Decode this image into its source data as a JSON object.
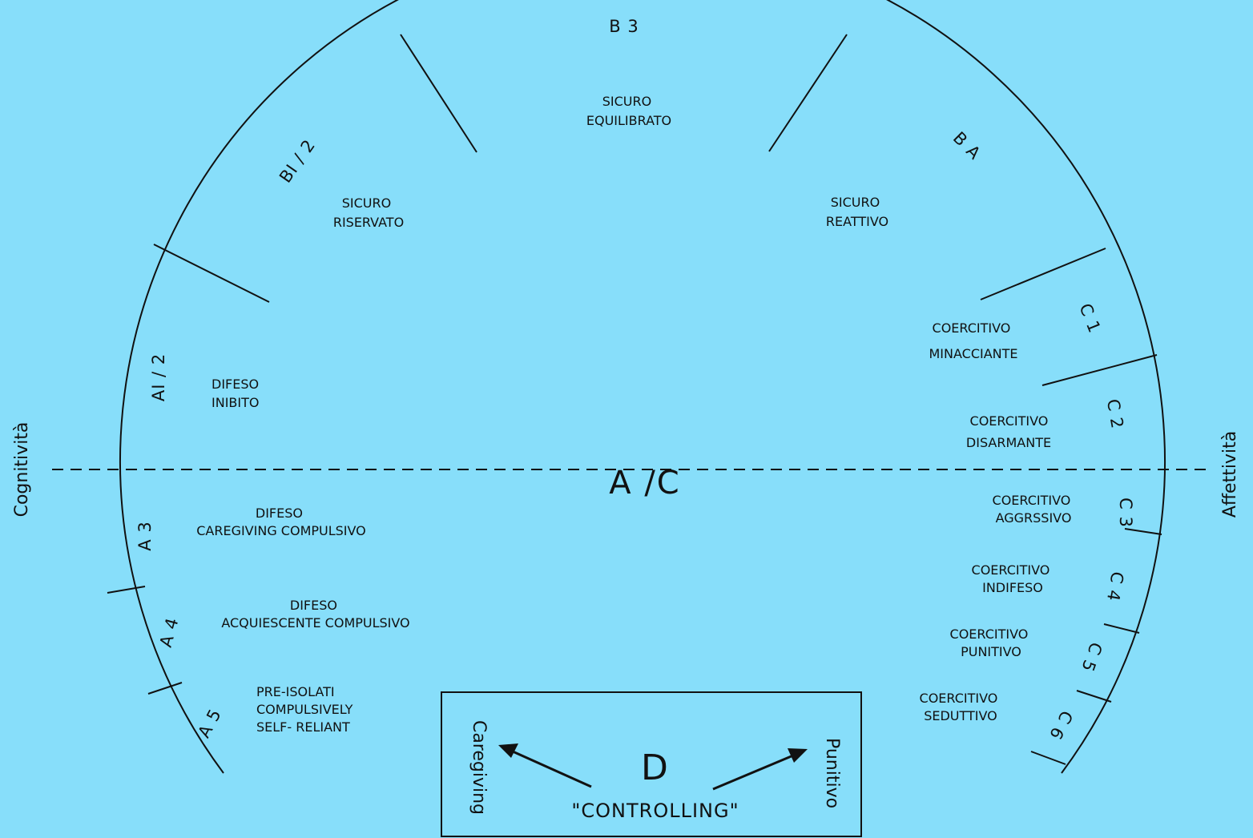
{
  "axis": {
    "left_label": "Cognitività",
    "right_label": "Affettività",
    "center_label": "A /C"
  },
  "segments": [
    {
      "id": "b3",
      "code": "B 3",
      "lines": [
        "SICURO",
        "EQUILIBRATO"
      ]
    },
    {
      "id": "b12",
      "code": "BI / 2",
      "lines": [
        "SICURO",
        "RISERVATO"
      ]
    },
    {
      "id": "b4",
      "code": "B A",
      "lines": [
        "SICURO",
        "REATTIVO"
      ]
    },
    {
      "id": "a12",
      "code": "AI / 2",
      "lines": [
        "DIFESO",
        "INIBITO"
      ]
    },
    {
      "id": "a3",
      "code": "A 3",
      "lines": [
        "DIFESO",
        "CAREGIVING COMPULSIVO"
      ]
    },
    {
      "id": "a4",
      "code": "A 4",
      "lines": [
        "DIFESO",
        "ACQUIESCENTE COMPULSIVO"
      ]
    },
    {
      "id": "a5",
      "code": "A 5",
      "lines": [
        "PRE-ISOLATI",
        "COMPULSIVELY",
        "SELF- RELIANT"
      ]
    },
    {
      "id": "c1",
      "code": "C 1",
      "lines": [
        "COERCITIVO",
        "MINACCIANTE"
      ]
    },
    {
      "id": "c2",
      "code": "C 2",
      "lines": [
        "COERCITIVO",
        "DISARMANTE"
      ]
    },
    {
      "id": "c3",
      "code": "C 3",
      "lines": [
        "COERCITIVO",
        "AGGRSSIVO"
      ]
    },
    {
      "id": "c4",
      "code": "C 4",
      "lines": [
        "COERCITIVO",
        "INDIFESO"
      ]
    },
    {
      "id": "c5",
      "code": "C 5",
      "lines": [
        "COERCITIVO",
        "PUNITIVO"
      ]
    },
    {
      "id": "c6",
      "code": "C 6",
      "lines": [
        "COERCITIVO",
        "SEDUTTIVO"
      ]
    }
  ],
  "d_box": {
    "letter": "D",
    "label": "\"CONTROLLING\"",
    "left_arrow_label": "Caregiving",
    "right_arrow_label": "Punitivo"
  },
  "colors": {
    "background": "#87DEFA",
    "ink": "#111111"
  }
}
